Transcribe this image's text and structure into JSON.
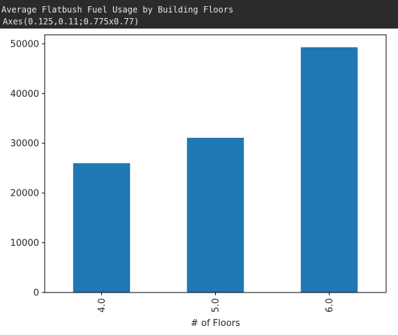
{
  "output_header": {
    "title_line": "Average Flatbush Fuel Usage by Building Floors",
    "repr_line": "Axes(0.125,0.11;0.775x0.77)"
  },
  "chart_data": {
    "type": "bar",
    "categories": [
      "4.0",
      "5.0",
      "6.0"
    ],
    "values": [
      26000,
      31100,
      49300
    ],
    "xlabel": "# of Floors",
    "ylabel": "",
    "ylim": [
      0,
      51800
    ],
    "yticks": [
      0,
      10000,
      20000,
      30000,
      40000,
      50000
    ],
    "ytick_labels": [
      "0",
      "10000",
      "20000",
      "30000",
      "40000",
      "50000"
    ],
    "bar_color": "#1f77b4",
    "grid": false
  }
}
